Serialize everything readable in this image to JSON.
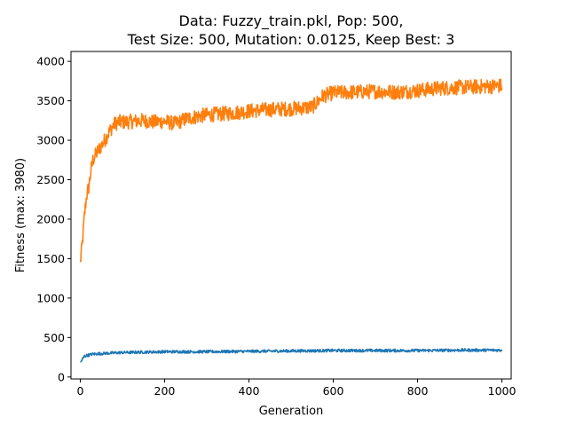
{
  "chart_data": {
    "type": "line",
    "title_line1": "Data: Fuzzy_train.pkl, Pop: 500,",
    "title_line2": "Test Size: 500, Mutation: 0.0125, Keep Best: 3",
    "xlabel": "Generation",
    "ylabel": "Fitness (max: 3980)",
    "xlim": [
      -22,
      1022
    ],
    "ylim": [
      -25,
      4125
    ],
    "xticks": [
      0,
      200,
      400,
      600,
      800,
      1000
    ],
    "xtick_labels": [
      "0",
      "200",
      "400",
      "600",
      "800",
      "1000"
    ],
    "yticks": [
      0,
      500,
      1000,
      1500,
      2000,
      2500,
      3000,
      3500,
      4000
    ],
    "ytick_labels": [
      "0",
      "500",
      "1000",
      "1500",
      "2000",
      "2500",
      "3000",
      "3500",
      "4000"
    ],
    "grid": false,
    "series": [
      {
        "color": "#ff7f0e",
        "x": [
          0,
          5,
          10,
          15,
          20,
          25,
          30,
          40,
          50,
          60,
          70,
          80,
          90,
          100,
          125,
          150,
          175,
          200,
          225,
          250,
          275,
          300,
          350,
          400,
          450,
          500,
          550,
          560,
          575,
          600,
          650,
          700,
          750,
          800,
          850,
          900,
          950,
          1000
        ],
        "values": [
          1450,
          1700,
          2050,
          2300,
          2400,
          2600,
          2750,
          2850,
          2930,
          3020,
          3120,
          3200,
          3230,
          3230,
          3240,
          3250,
          3230,
          3240,
          3210,
          3270,
          3300,
          3320,
          3340,
          3370,
          3390,
          3400,
          3420,
          3470,
          3560,
          3600,
          3610,
          3620,
          3610,
          3630,
          3660,
          3670,
          3680,
          3690
        ],
        "noise": 95
      },
      {
        "color": "#1f77b4",
        "x": [
          0,
          10,
          30,
          60,
          100,
          200,
          300,
          400,
          500,
          600,
          700,
          800,
          900,
          1000
        ],
        "values": [
          180,
          265,
          290,
          300,
          310,
          320,
          320,
          325,
          330,
          335,
          335,
          335,
          340,
          340
        ],
        "noise": 18
      }
    ]
  }
}
